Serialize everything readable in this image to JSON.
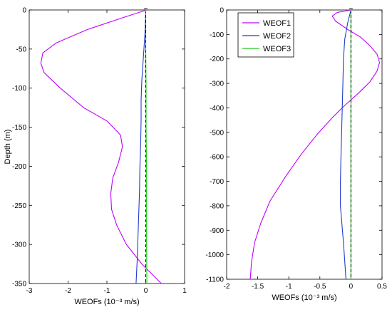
{
  "chart_data": [
    {
      "type": "line",
      "xlabel": "WEOFs (10⁻³ m/s)",
      "ylabel": "Depth (m)",
      "xlim": [
        -3,
        1
      ],
      "ylim": [
        -350,
        0
      ],
      "xticks": [
        -3,
        -2,
        -1,
        0,
        1
      ],
      "yticks": [
        0,
        -50,
        -100,
        -150,
        -200,
        -250,
        -300,
        -350
      ],
      "xtick_labels": [
        "-3",
        "-2",
        "-1",
        "0",
        "1"
      ],
      "ytick_labels": [
        "0",
        "-50",
        "-100",
        "-150",
        "-200",
        "-250",
        "-300",
        "-350"
      ],
      "zero_line": "dashed black vertical line at x = 0",
      "series": [
        {
          "color": "#bf00ff",
          "x": [
            0.02,
            -0.6,
            -1.5,
            -2.3,
            -2.65,
            -2.7,
            -2.62,
            -2.2,
            -1.6,
            -1.0,
            -0.65,
            -0.6,
            -0.7,
            -0.85,
            -0.9,
            -0.88,
            -0.75,
            -0.5,
            -0.1,
            0.4
          ],
          "y": [
            0,
            -10,
            -25,
            -42,
            -55,
            -68,
            -80,
            -100,
            -125,
            -142,
            -160,
            -175,
            -195,
            -215,
            -235,
            -255,
            -275,
            -300,
            -325,
            -350
          ]
        },
        {
          "color": "#1f3ccc",
          "x": [
            0.0,
            -0.02,
            -0.06,
            -0.1,
            -0.12,
            -0.12,
            -0.13,
            -0.15,
            -0.16,
            -0.18,
            -0.2,
            -0.22,
            -0.25
          ],
          "y": [
            0,
            -30,
            -60,
            -90,
            -115,
            -140,
            -170,
            -200,
            -230,
            -260,
            -290,
            -320,
            -350
          ]
        },
        {
          "color": "#22cc22",
          "x": [
            0.0,
            0.0,
            0.01,
            0.01,
            0.02,
            0.02,
            0.02,
            0.03
          ],
          "y": [
            0,
            -50,
            -100,
            -150,
            -200,
            -250,
            -300,
            -350
          ]
        }
      ]
    },
    {
      "type": "line",
      "xlabel": "WEOFs (10⁻³ m/s)",
      "xlim": [
        -2,
        0.5
      ],
      "ylim": [
        -1100,
        0
      ],
      "xticks": [
        -2,
        -1.5,
        -1,
        -0.5,
        0,
        0.5
      ],
      "yticks": [
        0,
        -100,
        -200,
        -300,
        -400,
        -500,
        -600,
        -700,
        -800,
        -900,
        -1000,
        -1100
      ],
      "xtick_labels": [
        "-2",
        "-1.5",
        "-1",
        "-0.5",
        "0",
        "0.5"
      ],
      "ytick_labels": [
        "0",
        "-100",
        "-200",
        "-300",
        "-400",
        "-500",
        "-600",
        "-700",
        "-800",
        "-900",
        "-1000",
        "-1100"
      ],
      "legend": {
        "position": "top-left",
        "entries": [
          "WEOF1",
          "WEOF2",
          "WEOF3"
        ]
      },
      "zero_line": "dashed black vertical line at x = 0",
      "series": [
        {
          "name": "WEOF1",
          "color": "#bf00ff",
          "x": [
            0.0,
            -0.22,
            -0.3,
            -0.25,
            -0.05,
            0.15,
            0.3,
            0.42,
            0.46,
            0.42,
            0.3,
            0.12,
            -0.1,
            -0.3,
            -0.55,
            -0.8,
            -1.05,
            -1.3,
            -1.45,
            -1.55,
            -1.6,
            -1.62
          ],
          "y": [
            0,
            -10,
            -25,
            -45,
            -80,
            -110,
            -145,
            -180,
            -215,
            -250,
            -295,
            -340,
            -390,
            -440,
            -510,
            -590,
            -680,
            -780,
            -870,
            -950,
            -1030,
            -1100
          ]
        },
        {
          "name": "WEOF2",
          "color": "#1f3ccc",
          "x": [
            0.0,
            -0.05,
            -0.1,
            -0.12,
            -0.13,
            -0.14,
            -0.15,
            -0.16,
            -0.17,
            -0.17,
            -0.12,
            -0.08
          ],
          "y": [
            0,
            -50,
            -120,
            -200,
            -300,
            -400,
            -500,
            -600,
            -700,
            -800,
            -950,
            -1100
          ]
        },
        {
          "name": "WEOF3",
          "color": "#22cc22",
          "x": [
            0.0,
            0.0,
            0.0,
            0.0,
            0.0,
            0.0
          ],
          "y": [
            0,
            -200,
            -400,
            -600,
            -800,
            -1100
          ]
        }
      ]
    }
  ]
}
